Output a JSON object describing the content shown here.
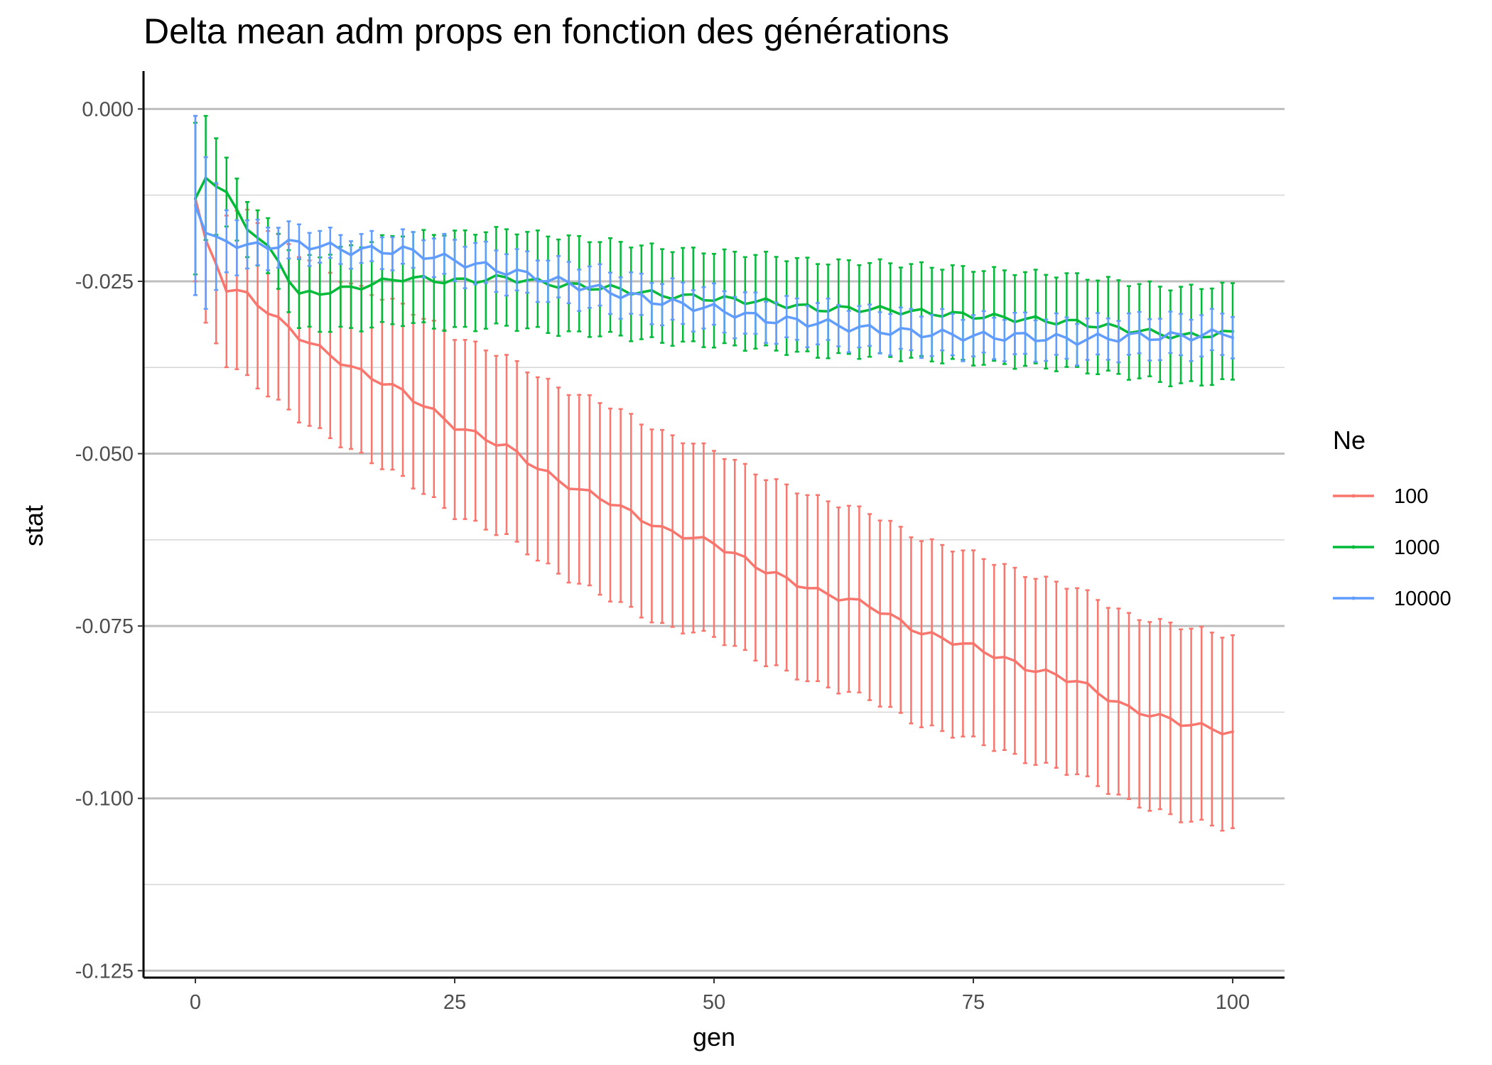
{
  "chart_data": {
    "type": "line",
    "title": "Delta mean adm props en fonction des générations",
    "xlabel": "gen",
    "ylabel": "stat",
    "xlim": [
      -5,
      105
    ],
    "ylim": [
      -0.126,
      0.0055
    ],
    "x_ticks": [
      0,
      25,
      50,
      75,
      100
    ],
    "x_tick_labels": [
      "0",
      "25",
      "50",
      "75",
      "100"
    ],
    "y_ticks": [
      0.0,
      -0.025,
      -0.05,
      -0.075,
      -0.1,
      -0.125
    ],
    "y_tick_labels": [
      "0.000",
      "-0.025",
      "-0.050",
      "-0.075",
      "-0.100",
      "-0.125"
    ],
    "y_minor_ticks": [
      -0.0125,
      -0.0375,
      -0.0625,
      -0.0875,
      -0.1125
    ],
    "grid": "horizontal",
    "legend": {
      "title": "Ne",
      "position": "right"
    },
    "series": [
      {
        "name": "100",
        "color": "#F8766D",
        "knots": [
          {
            "x": 0,
            "mean": -0.013,
            "err": 0.012
          },
          {
            "x": 1,
            "mean": -0.019,
            "err": 0.012
          },
          {
            "x": 3,
            "mean": -0.026,
            "err": 0.011
          },
          {
            "x": 5,
            "mean": -0.027,
            "err": 0.012
          },
          {
            "x": 10,
            "mean": -0.033,
            "err": 0.012
          },
          {
            "x": 15,
            "mean": -0.0375,
            "err": 0.012
          },
          {
            "x": 20,
            "mean": -0.041,
            "err": 0.0125
          },
          {
            "x": 25,
            "mean": -0.046,
            "err": 0.013
          },
          {
            "x": 30,
            "mean": -0.049,
            "err": 0.013
          },
          {
            "x": 35,
            "mean": -0.054,
            "err": 0.0135
          },
          {
            "x": 40,
            "mean": -0.057,
            "err": 0.014
          },
          {
            "x": 45,
            "mean": -0.061,
            "err": 0.014
          },
          {
            "x": 50,
            "mean": -0.063,
            "err": 0.0135
          },
          {
            "x": 55,
            "mean": -0.067,
            "err": 0.0135
          },
          {
            "x": 60,
            "mean": -0.07,
            "err": 0.0135
          },
          {
            "x": 65,
            "mean": -0.072,
            "err": 0.0135
          },
          {
            "x": 70,
            "mean": -0.076,
            "err": 0.0135
          },
          {
            "x": 75,
            "mean": -0.078,
            "err": 0.0135
          },
          {
            "x": 80,
            "mean": -0.081,
            "err": 0.0135
          },
          {
            "x": 85,
            "mean": -0.083,
            "err": 0.0135
          },
          {
            "x": 90,
            "mean": -0.087,
            "err": 0.0135
          },
          {
            "x": 95,
            "mean": -0.089,
            "err": 0.014
          },
          {
            "x": 100,
            "mean": -0.0905,
            "err": 0.014
          }
        ]
      },
      {
        "name": "1000",
        "color": "#00BA38",
        "knots": [
          {
            "x": 0,
            "mean": -0.013,
            "err": 0.011
          },
          {
            "x": 1,
            "mean": -0.01,
            "err": 0.009
          },
          {
            "x": 3,
            "mean": -0.0125,
            "err": 0.005
          },
          {
            "x": 5,
            "mean": -0.017,
            "err": 0.004
          },
          {
            "x": 8,
            "mean": -0.022,
            "err": 0.004
          },
          {
            "x": 10,
            "mean": -0.027,
            "err": 0.005
          },
          {
            "x": 15,
            "mean": -0.026,
            "err": 0.006
          },
          {
            "x": 20,
            "mean": -0.0245,
            "err": 0.0065
          },
          {
            "x": 25,
            "mean": -0.025,
            "err": 0.007
          },
          {
            "x": 30,
            "mean": -0.0245,
            "err": 0.007
          },
          {
            "x": 35,
            "mean": -0.0255,
            "err": 0.007
          },
          {
            "x": 40,
            "mean": -0.026,
            "err": 0.0068
          },
          {
            "x": 45,
            "mean": -0.027,
            "err": 0.0068
          },
          {
            "x": 50,
            "mean": -0.0275,
            "err": 0.0068
          },
          {
            "x": 55,
            "mean": -0.028,
            "err": 0.0068
          },
          {
            "x": 60,
            "mean": -0.029,
            "err": 0.0068
          },
          {
            "x": 65,
            "mean": -0.029,
            "err": 0.0068
          },
          {
            "x": 70,
            "mean": -0.0295,
            "err": 0.0068
          },
          {
            "x": 75,
            "mean": -0.03,
            "err": 0.0068
          },
          {
            "x": 80,
            "mean": -0.0305,
            "err": 0.0068
          },
          {
            "x": 85,
            "mean": -0.031,
            "err": 0.0068
          },
          {
            "x": 90,
            "mean": -0.032,
            "err": 0.0068
          },
          {
            "x": 95,
            "mean": -0.033,
            "err": 0.007
          },
          {
            "x": 100,
            "mean": -0.0325,
            "err": 0.007
          }
        ]
      },
      {
        "name": "10000",
        "color": "#619CFF",
        "knots": [
          {
            "x": 0,
            "mean": -0.014,
            "err": 0.013
          },
          {
            "x": 1,
            "mean": -0.018,
            "err": 0.011
          },
          {
            "x": 3,
            "mean": -0.019,
            "err": 0.0045
          },
          {
            "x": 5,
            "mean": -0.02,
            "err": 0.0035
          },
          {
            "x": 10,
            "mean": -0.0195,
            "err": 0.0025
          },
          {
            "x": 15,
            "mean": -0.0205,
            "err": 0.002
          },
          {
            "x": 20,
            "mean": -0.0205,
            "err": 0.0025
          },
          {
            "x": 25,
            "mean": -0.022,
            "err": 0.003
          },
          {
            "x": 30,
            "mean": -0.0235,
            "err": 0.003
          },
          {
            "x": 35,
            "mean": -0.025,
            "err": 0.003
          },
          {
            "x": 40,
            "mean": -0.0265,
            "err": 0.003
          },
          {
            "x": 45,
            "mean": -0.028,
            "err": 0.003
          },
          {
            "x": 50,
            "mean": -0.029,
            "err": 0.003
          },
          {
            "x": 55,
            "mean": -0.0305,
            "err": 0.003
          },
          {
            "x": 60,
            "mean": -0.031,
            "err": 0.003
          },
          {
            "x": 65,
            "mean": -0.032,
            "err": 0.003
          },
          {
            "x": 70,
            "mean": -0.0325,
            "err": 0.003
          },
          {
            "x": 75,
            "mean": -0.033,
            "err": 0.003
          },
          {
            "x": 80,
            "mean": -0.033,
            "err": 0.003
          },
          {
            "x": 85,
            "mean": -0.0335,
            "err": 0.003
          },
          {
            "x": 90,
            "mean": -0.033,
            "err": 0.003
          },
          {
            "x": 95,
            "mean": -0.033,
            "err": 0.003
          },
          {
            "x": 100,
            "mean": -0.0325,
            "err": 0.003
          }
        ]
      }
    ]
  }
}
